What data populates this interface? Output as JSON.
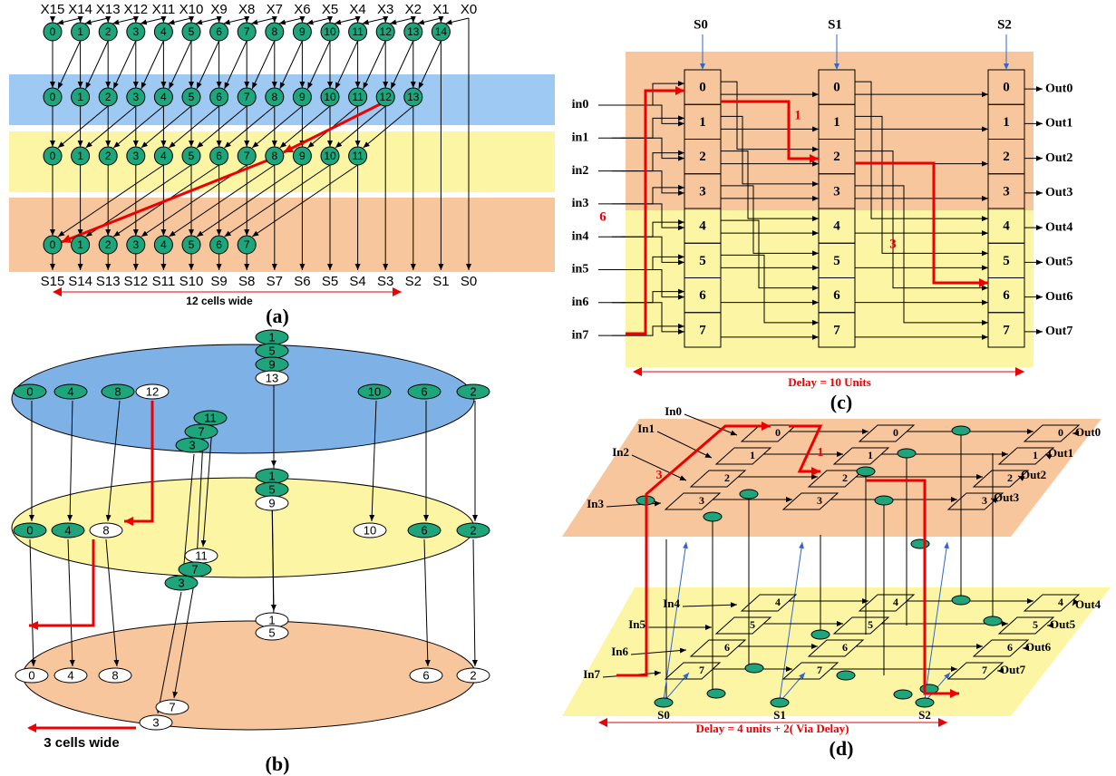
{
  "panel_a": {
    "x_labels": [
      "X15",
      "X14",
      "X13",
      "X12",
      "X11",
      "X10",
      "X9",
      "X8",
      "X7",
      "X6",
      "X5",
      "X4",
      "X3",
      "X2",
      "X1",
      "X0"
    ],
    "rows": [
      [
        "0",
        "1",
        "2",
        "3",
        "4",
        "5",
        "6",
        "7",
        "8",
        "9",
        "10",
        "11",
        "12",
        "13",
        "14"
      ],
      [
        "0",
        "1",
        "2",
        "3",
        "4",
        "5",
        "6",
        "7",
        "8",
        "9",
        "10",
        "11",
        "12",
        "13"
      ],
      [
        "0",
        "1",
        "2",
        "3",
        "4",
        "5",
        "6",
        "7",
        "8",
        "9",
        "10",
        "11"
      ],
      [
        "0",
        "1",
        "2",
        "3",
        "4",
        "5",
        "6",
        "7"
      ]
    ],
    "s_labels": [
      "S15",
      "S14",
      "S13",
      "S12",
      "S11",
      "S10",
      "S9",
      "S8",
      "S7",
      "S6",
      "S5",
      "S4",
      "S3",
      "S2",
      "S1",
      "S0"
    ],
    "width_label": "12 cells wide",
    "caption": "(a)"
  },
  "panel_b": {
    "top_nodes": [
      "0",
      "4",
      "8",
      "12",
      "1",
      "5",
      "9",
      "13",
      "11",
      "7",
      "3",
      "10",
      "6",
      "2"
    ],
    "middle_nodes": [
      "0",
      "4",
      "8",
      "1",
      "5",
      "9",
      "11",
      "7",
      "3",
      "10",
      "6",
      "2"
    ],
    "bottom_nodes": [
      "0",
      "4",
      "8",
      "1",
      "5",
      "7",
      "3",
      "6",
      "2"
    ],
    "width_label": "3 cells wide",
    "caption": "(b)"
  },
  "panel_c": {
    "selects": [
      "S0",
      "S1",
      "S2"
    ],
    "inputs": [
      "in0",
      "in1",
      "in2",
      "in3",
      "in4",
      "in5",
      "in6",
      "in7"
    ],
    "columns": [
      [
        "0",
        "1",
        "2",
        "3",
        "4",
        "5",
        "6",
        "7"
      ],
      [
        "0",
        "1",
        "2",
        "3",
        "4",
        "5",
        "6",
        "7"
      ],
      [
        "0",
        "1",
        "2",
        "3",
        "4",
        "5",
        "6",
        "7"
      ]
    ],
    "outputs": [
      "Out0",
      "Out1",
      "Out2",
      "Out3",
      "Out4",
      "Out5",
      "Out6",
      "Out7"
    ],
    "path_labels": [
      "1",
      "6",
      "3"
    ],
    "delay": "Delay =  10  Units",
    "caption": "(c)"
  },
  "panel_d": {
    "inputs": [
      "In0",
      "In1",
      "In2",
      "In3",
      "In4",
      "In5",
      "In6",
      "In7"
    ],
    "columns": [
      [
        "0",
        "1",
        "2",
        "3",
        "4",
        "5",
        "6",
        "7"
      ],
      [
        "0",
        "1",
        "2",
        "3",
        "4",
        "5",
        "6",
        "7"
      ],
      [
        "0",
        "1",
        "2",
        "3",
        "4",
        "5",
        "6",
        "7"
      ]
    ],
    "outputs": [
      "Out0",
      "Out1",
      "Out2",
      "Out3",
      "Out4",
      "Out5",
      "Out6",
      "Out7"
    ],
    "selects": [
      "S0",
      "S1",
      "S2"
    ],
    "path_labels": [
      "3",
      "1"
    ],
    "delay": "Delay = 4 units + 2( Via Delay)",
    "caption": "(d)"
  }
}
